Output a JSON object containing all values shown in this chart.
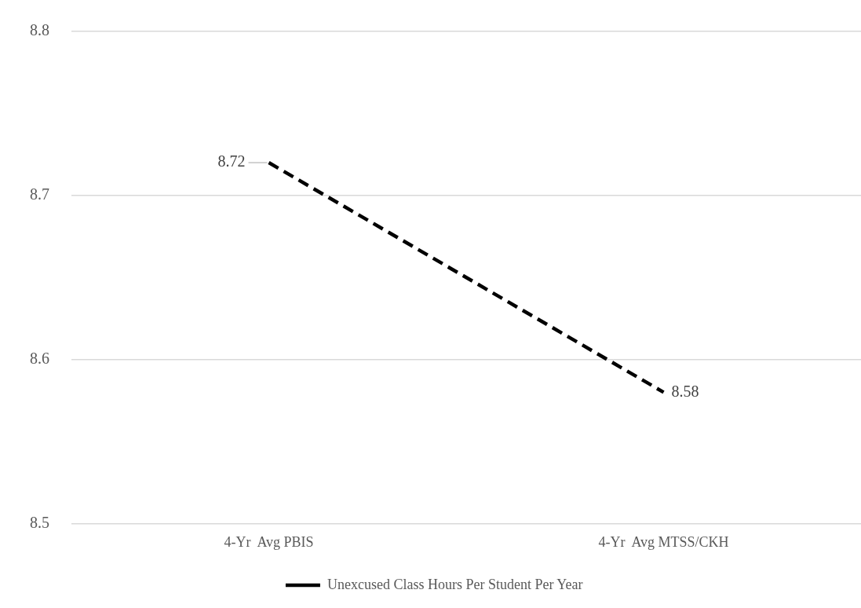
{
  "chart_data": {
    "type": "line",
    "categories": [
      "4-Yr  Avg PBIS",
      "4-Yr  Avg MTSS/CKH"
    ],
    "series": [
      {
        "name": "Unexcused Class Hours Per Student Per Year",
        "color": "#000000",
        "values": [
          8.72,
          8.58
        ]
      }
    ],
    "ylim": [
      8.5,
      8.8
    ],
    "yticks": [
      8.5,
      8.6,
      8.7,
      8.8
    ],
    "grid": "y",
    "legend": "bottom",
    "marker": "none",
    "line_style": "dashed",
    "data_labels": true
  }
}
